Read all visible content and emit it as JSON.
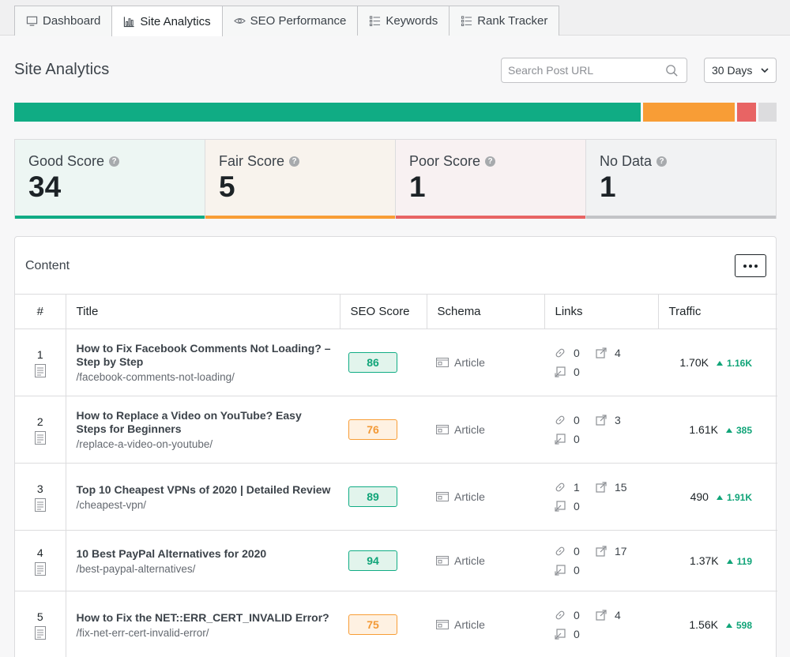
{
  "tabs": [
    {
      "label": "Dashboard",
      "icon": "monitor-icon"
    },
    {
      "label": "Site Analytics",
      "icon": "bar-chart-icon",
      "active": true
    },
    {
      "label": "SEO Performance",
      "icon": "eye-icon"
    },
    {
      "label": "Keywords",
      "icon": "list-icon"
    },
    {
      "label": "Rank Tracker",
      "icon": "list-icon"
    }
  ],
  "page_title": "Site Analytics",
  "search": {
    "placeholder": "Search Post URL"
  },
  "period": {
    "selected": "30 Days"
  },
  "score_bar": {
    "segments": [
      {
        "name": "good",
        "value": 34,
        "color": "#10ac84"
      },
      {
        "name": "fair",
        "value": 5,
        "color": "#f89d36"
      },
      {
        "name": "poor",
        "value": 1,
        "color": "#e86464"
      },
      {
        "name": "none",
        "value": 1,
        "color": "#dcdcde"
      }
    ]
  },
  "cards": [
    {
      "label": "Good Score",
      "value": "34",
      "color": "#10ac84",
      "bg": "#edf6f3"
    },
    {
      "label": "Fair Score",
      "value": "5",
      "color": "#f89d36",
      "bg": "#f8f3ed"
    },
    {
      "label": "Poor Score",
      "value": "1",
      "color": "#e86464",
      "bg": "#f8f1f2"
    },
    {
      "label": "No Data",
      "value": "1",
      "color": "#c3c4c7",
      "bg": "#f1f2f3"
    }
  ],
  "content": {
    "title": "Content",
    "columns": [
      "#",
      "Title",
      "SEO Score",
      "Schema",
      "Links",
      "Traffic"
    ],
    "rows": [
      {
        "num": "1",
        "title": "How to Fix Facebook Comments Not Loading? – Step by Step",
        "url": "/facebook-comments-not-loading/",
        "score": "86",
        "score_level": "good",
        "schema": "Article",
        "internal": "0",
        "external": "4",
        "incoming": "0",
        "traffic": "1.70K",
        "delta": "1.16K"
      },
      {
        "num": "2",
        "title": "How to Replace a Video on YouTube? Easy Steps for Beginners",
        "url": "/replace-a-video-on-youtube/",
        "score": "76",
        "score_level": "fair",
        "schema": "Article",
        "internal": "0",
        "external": "3",
        "incoming": "0",
        "traffic": "1.61K",
        "delta": "385"
      },
      {
        "num": "3",
        "title": "Top 10 Cheapest VPNs of 2020 | Detailed Review",
        "url": "/cheapest-vpn/",
        "score": "89",
        "score_level": "good",
        "schema": "Article",
        "internal": "1",
        "external": "15",
        "incoming": "0",
        "traffic": "490",
        "delta": "1.91K"
      },
      {
        "num": "4",
        "title": "10 Best PayPal Alternatives for 2020",
        "url": "/best-paypal-alternatives/",
        "score": "94",
        "score_level": "good",
        "schema": "Article",
        "internal": "0",
        "external": "17",
        "incoming": "0",
        "traffic": "1.37K",
        "delta": "119"
      },
      {
        "num": "5",
        "title": "How to Fix the NET::ERR_CERT_INVALID Error?",
        "url": "/fix-net-err-cert-invalid-error/",
        "score": "75",
        "score_level": "fair",
        "schema": "Article",
        "internal": "0",
        "external": "4",
        "incoming": "0",
        "traffic": "1.56K",
        "delta": "598"
      }
    ]
  }
}
